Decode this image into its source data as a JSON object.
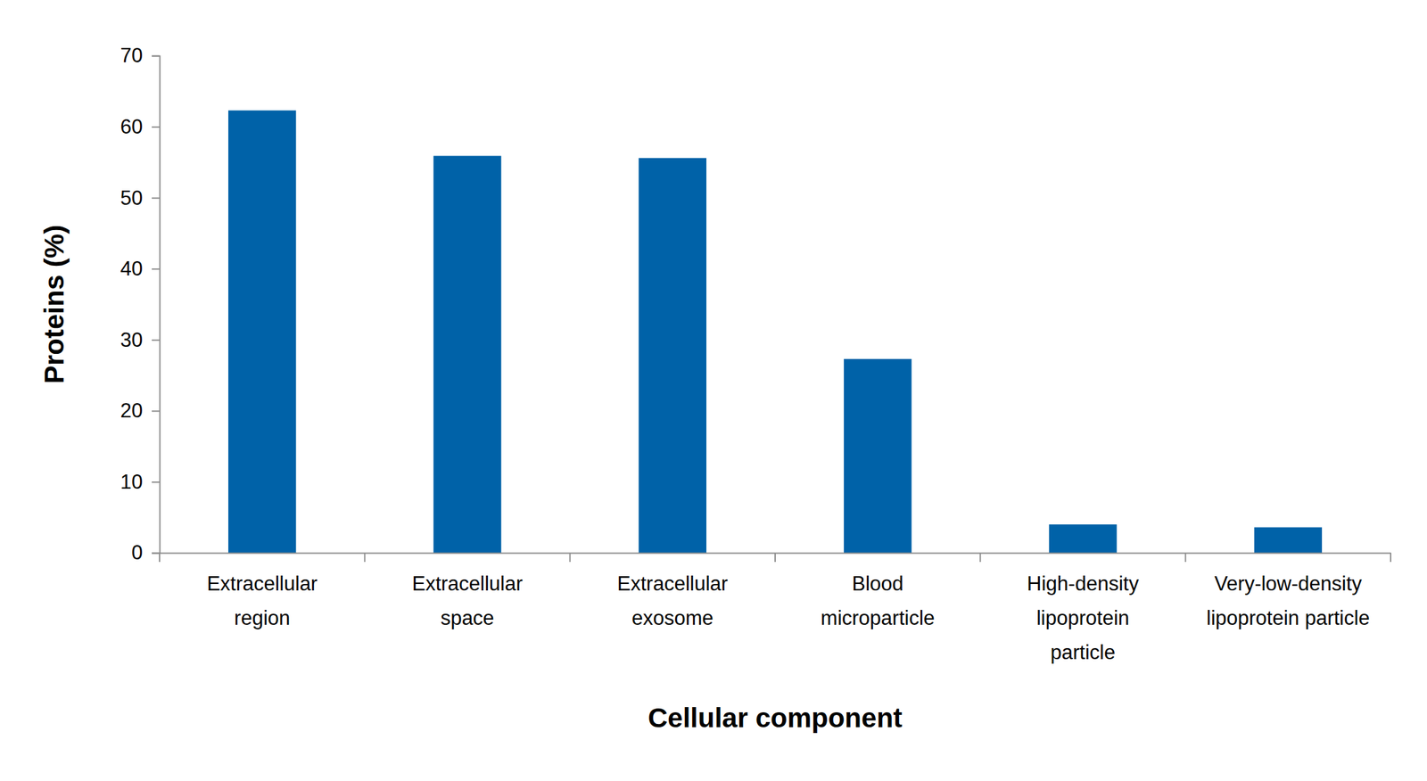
{
  "chart_data": {
    "type": "bar",
    "categories": [
      "Extracellular\nregion",
      "Extracellular\nspace",
      "Extracellular\nexosome",
      "Blood\nmicroparticle",
      "High-density\nlipoprotein\nparticle",
      "Very-low-density\nlipoprotein particle"
    ],
    "values": [
      62.3,
      55.9,
      55.6,
      27.3,
      4.0,
      3.6
    ],
    "color": "#0062a8",
    "x_label": "Cellular component",
    "y_label": "Proteins (%)",
    "ylim": [
      0,
      70
    ],
    "yticks": [
      0,
      10,
      20,
      30,
      40,
      50,
      60,
      70
    ],
    "grid": false
  }
}
